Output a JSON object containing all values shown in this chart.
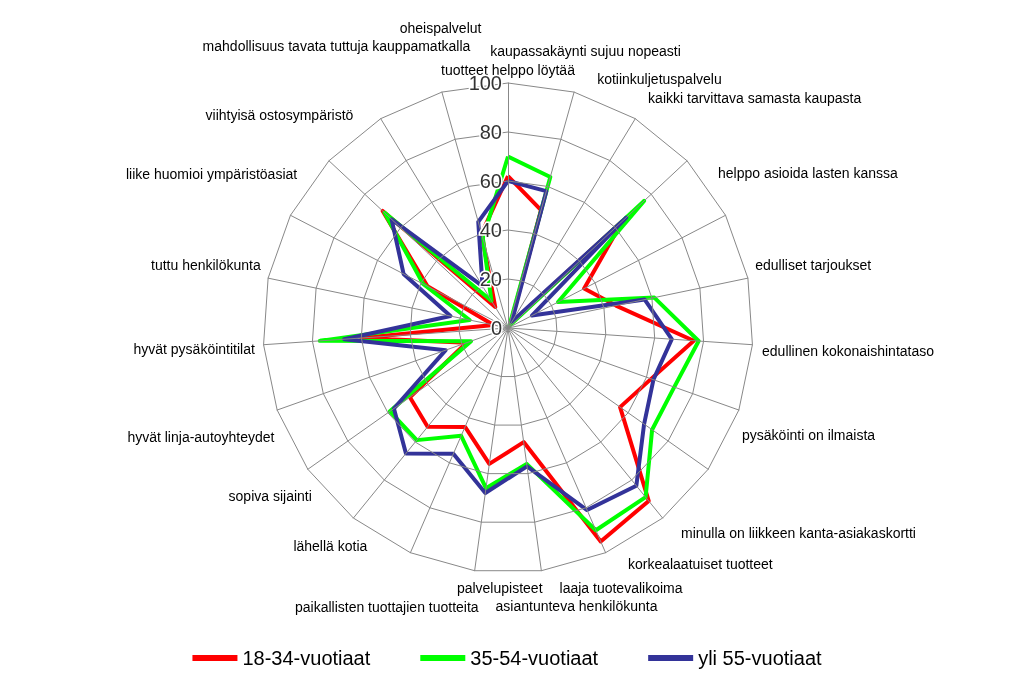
{
  "chart_data": {
    "type": "radar",
    "categories": [
      "tuotteet helppo löytää",
      "kaupassakäynti sujuu nopeasti",
      "kotiinkuljetuspalvelu",
      "kaikki tarvittava samasta kaupasta",
      "helppo asioida lasten kanssa",
      "edulliset tarjoukset",
      "edullinen kokonaishintataso",
      "pysäköinti on ilmaista",
      "minulla on liikkeen kanta-asiakaskortti",
      "korkealaatuiset tuotteet",
      "laaja tuotevalikoima",
      "asiantunteva henkilökunta",
      "palvelupisteet",
      "paikallisten tuottajien tuotteita",
      "lähellä kotia",
      "sopiva sijainti",
      "hyvät linja-autoyhteydet",
      "hyvät pysäköintitilat",
      "tuttu henkilökunta",
      "liike huomioi ympäristöasiat",
      "viihtyisä ostosympäristö",
      "mahdollisuus tavata tuttuja kauppamatkalla",
      "oheispalvelut"
    ],
    "series": [
      {
        "name": "18-34-vuotiaat",
        "color": "#ff0000",
        "values": [
          62,
          50,
          2,
          64,
          35,
          45,
          76,
          62,
          56,
          91,
          95,
          47,
          56,
          44,
          52,
          49,
          18,
          60,
          6,
          37,
          70,
          10,
          40
        ]
      },
      {
        "name": "35-54-vuotiaat",
        "color": "#00ff00",
        "values": [
          70,
          64,
          1,
          76,
          23,
          61,
          78,
          72,
          72,
          89,
          90,
          56,
          66,
          48,
          59,
          59,
          16,
          77,
          16,
          39,
          69,
          13,
          38
        ]
      },
      {
        "name": "yli 55-vuotiaat",
        "color": "#333399",
        "values": [
          60,
          58,
          3,
          66,
          11,
          57,
          67,
          63,
          68,
          83,
          81,
          57,
          68,
          56,
          66,
          57,
          27,
          67,
          24,
          48,
          65,
          20,
          45
        ]
      }
    ],
    "ylim": [
      0,
      100
    ],
    "yticks": [
      0,
      20,
      40,
      60,
      80,
      100
    ],
    "legend": "bottom"
  }
}
